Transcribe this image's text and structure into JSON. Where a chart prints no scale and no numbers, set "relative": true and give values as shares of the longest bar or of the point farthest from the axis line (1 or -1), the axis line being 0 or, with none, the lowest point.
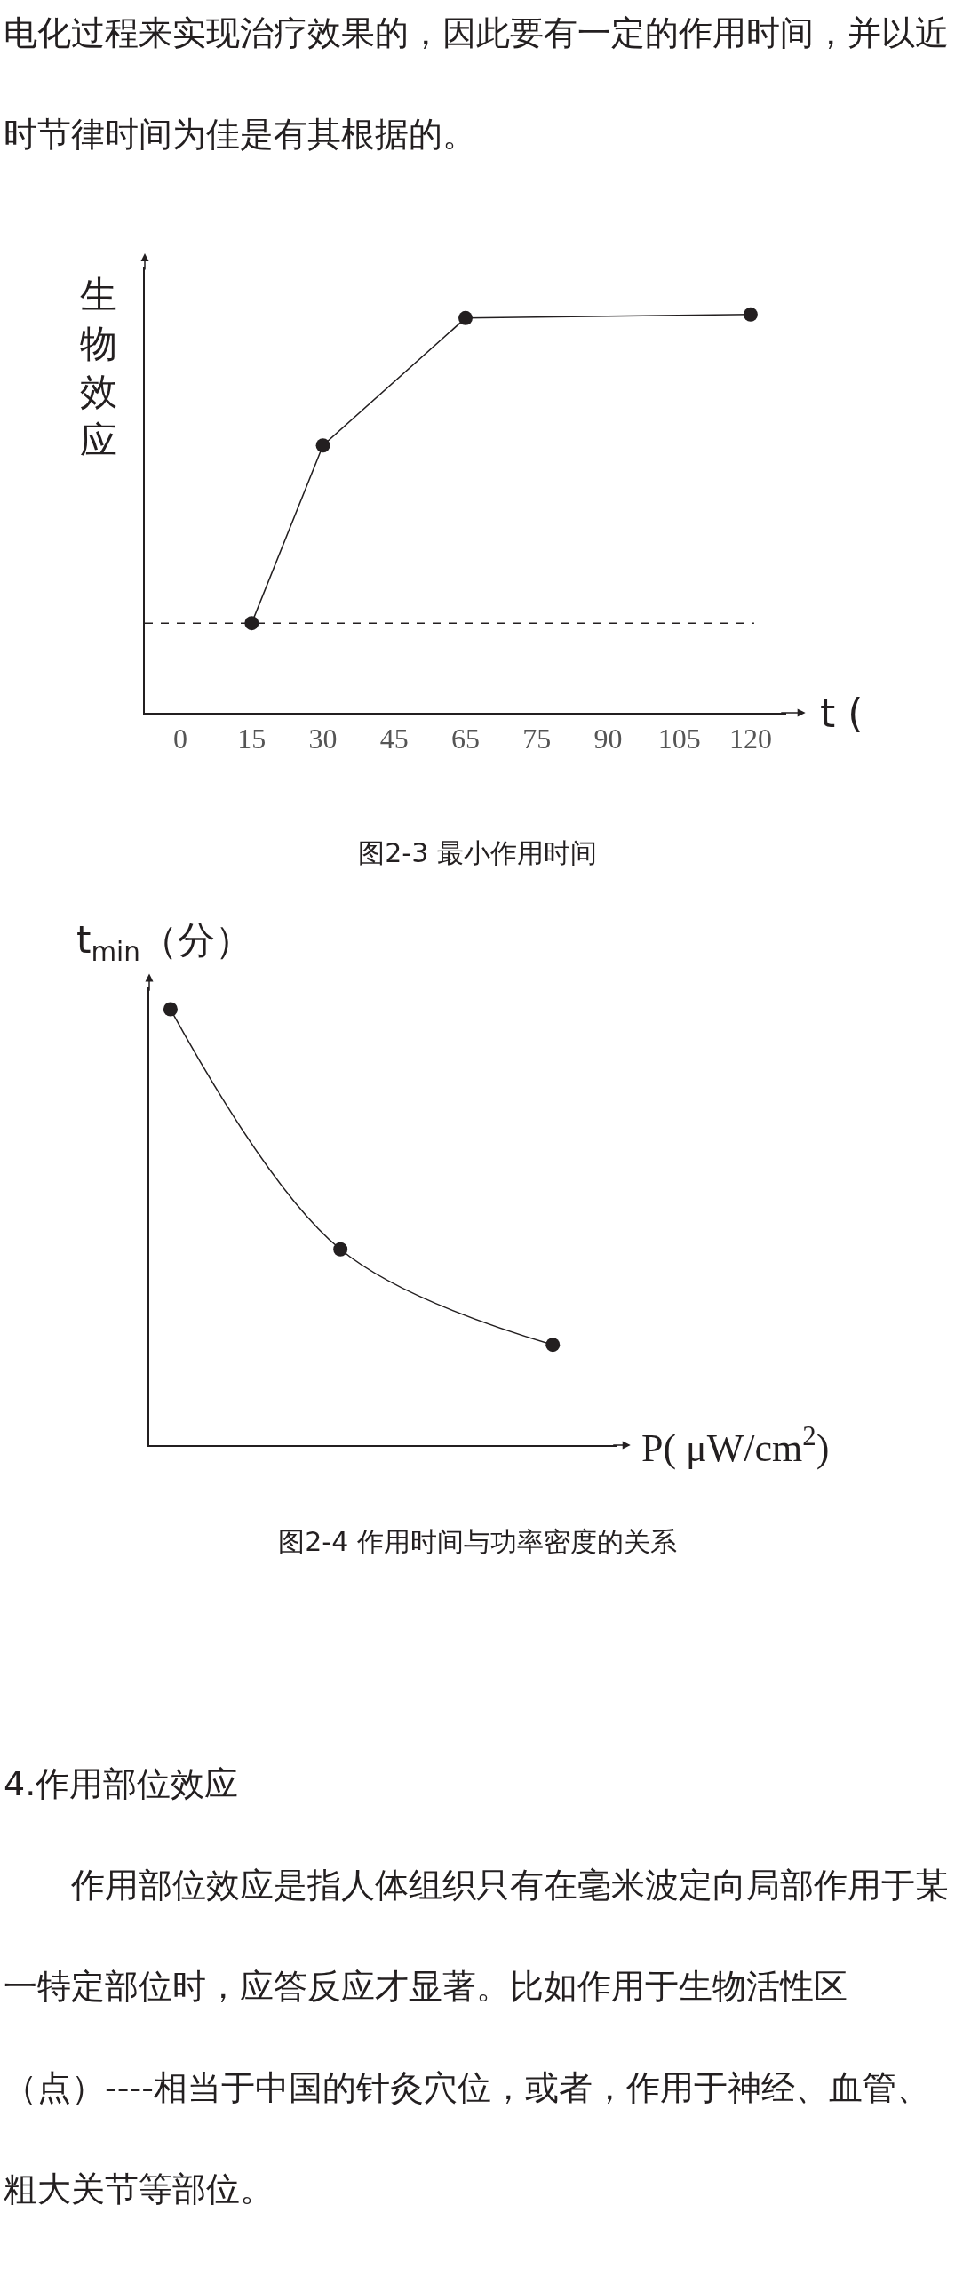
{
  "chart_data": [
    {
      "type": "other",
      "annotations": [
        "电化过程来实现治疗效果的，因此要有一定的作用时间，并以近时节律时间为佳是有其根据的。"
      ]
    },
    {
      "type": "line",
      "ylabel": "生物效应",
      "xlabel": "t (",
      "categories": [
        "0",
        "15",
        "30",
        "45",
        "65",
        "75",
        "90",
        "105",
        "120"
      ],
      "series": [
        {
          "color": "#231f20",
          "values": [
            null,
            0.225,
            0.671,
            null,
            0.991,
            null,
            null,
            null,
            1
          ]
        }
      ],
      "relative": true,
      "marker": "circle",
      "line_style": "solid",
      "tick_labels": "x",
      "ref_lines": [
        {
          "axis": "y",
          "value": 0.225,
          "line_style": "dashed",
          "color": "#231f20"
        }
      ],
      "annotations": [
        "图2-3   最小作用时间"
      ]
    },
    {
      "type": "line",
      "ylabel": "t$_{min}$（分）",
      "xlabel": "P( μW/cm$^{2}$)",
      "categories": [
        null,
        null,
        null,
        null,
        null,
        null,
        null,
        null,
        null,
        null
      ],
      "series": [
        {
          "color": "#231f20",
          "values": [
            1,
            null,
            null,
            null,
            0.449,
            null,
            null,
            null,
            null,
            0.23
          ]
        }
      ],
      "relative": true,
      "marker": "circle",
      "line_style": "solid",
      "tick_labels": false,
      "annotations": [
        "图2-4   作用时间与功率密度的关系"
      ]
    },
    {
      "type": "other",
      "title": "4.作用部位效应",
      "annotations": [
        "作用部位效应是指人体组织只有在毫米波定向局部作用于某一特定部位时，应答反应才显著。比如作用于生物活性区（点）----相当于中国的针灸穴位，或者，作用于神经、血管、粗大关节等部位。"
      ]
    }
  ]
}
